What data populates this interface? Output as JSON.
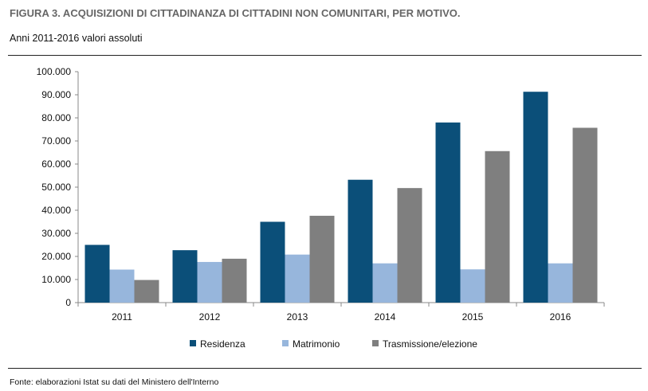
{
  "header": {
    "title": "FIGURA 3. ACQUISIZIONI DI CITTADINANZA DI CITTADINI NON COMUNITARI, PER MOTIVO.",
    "subtitle": "Anni 2011-2016 valori assoluti"
  },
  "footer": {
    "source": "Fonte: elaborazioni Istat su dati del Ministero dell'Interno"
  },
  "chart_data": {
    "type": "bar",
    "title": "FIGURA 3. ACQUISIZIONI DI CITTADINANZA DI CITTADINI NON COMUNITARI, PER MOTIVO.",
    "subtitle": "Anni 2011-2016 valori assoluti",
    "xlabel": "",
    "ylabel": "",
    "categories": [
      "2011",
      "2012",
      "2013",
      "2014",
      "2015",
      "2016"
    ],
    "series": [
      {
        "name": "Residenza",
        "color": "#0b4f79",
        "values": [
          25000,
          22700,
          35000,
          53200,
          78000,
          91300
        ]
      },
      {
        "name": "Matrimonio",
        "color": "#97b6dc",
        "values": [
          14300,
          17600,
          20800,
          17000,
          14400,
          17000
        ]
      },
      {
        "name": "Trasmissione/elezione",
        "color": "#7f7f7f",
        "values": [
          9800,
          19000,
          37600,
          49600,
          65600,
          75700
        ]
      }
    ],
    "ylim": [
      0,
      100000
    ],
    "ytick_values": [
      0,
      10000,
      20000,
      30000,
      40000,
      50000,
      60000,
      70000,
      80000,
      90000,
      100000
    ],
    "ytick_labels": [
      "0",
      "10.000",
      "20.000",
      "30.000",
      "40.000",
      "50.000",
      "60.000",
      "70.000",
      "80.000",
      "90.000",
      "100.000"
    ],
    "grid": false,
    "legend_position": "bottom"
  }
}
